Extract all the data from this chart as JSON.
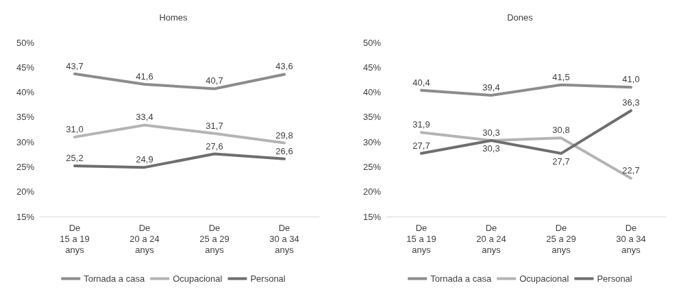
{
  "chart_data": [
    {
      "type": "line",
      "title": "Homes",
      "categories": [
        "De\n15 a 19\nanys",
        "De\n20 a 24\nanys",
        "De\n25 a 29\nanys",
        "De\n30 a 34\nanys"
      ],
      "series": [
        {
          "name": "Tornada a casa",
          "color": "#8c8c8c",
          "values": [
            43.7,
            41.6,
            40.7,
            43.6
          ],
          "value_labels": [
            "43,7",
            "41,6",
            "40,7",
            "43,6"
          ]
        },
        {
          "name": "Ocupacional",
          "color": "#b4b4b4",
          "values": [
            31.0,
            33.4,
            31.7,
            29.8
          ],
          "value_labels": [
            "31,0",
            "33,4",
            "31,7",
            "29,8"
          ]
        },
        {
          "name": "Personal",
          "color": "#6e6e6e",
          "values": [
            25.2,
            24.9,
            27.6,
            26.6
          ],
          "value_labels": [
            "25,2",
            "24,9",
            "27,6",
            "26,6"
          ]
        }
      ],
      "ylim": [
        15,
        50
      ],
      "yticks": [
        {
          "value": 15,
          "label": "15%"
        },
        {
          "value": 20,
          "label": "20%"
        },
        {
          "value": 25,
          "label": "25%"
        },
        {
          "value": 30,
          "label": "30%"
        },
        {
          "value": 35,
          "label": "35%"
        },
        {
          "value": 40,
          "label": "40%"
        },
        {
          "value": 45,
          "label": "45%"
        },
        {
          "value": 50,
          "label": "50%"
        }
      ],
      "grid": false,
      "legend": "bottom",
      "marker": "none",
      "line_style": "solid"
    },
    {
      "type": "line",
      "title": "Dones",
      "categories": [
        "De\n15 a 19\nanys",
        "De\n20 a 24\nanys",
        "De\n25 a 29\nanys",
        "De\n30 a 34\nanys"
      ],
      "series": [
        {
          "name": "Tornada a casa",
          "color": "#8c8c8c",
          "values": [
            40.4,
            39.4,
            41.5,
            41.0
          ],
          "value_labels": [
            "40,4",
            "39,4",
            "41,5",
            "41,0"
          ]
        },
        {
          "name": "Ocupacional",
          "color": "#b4b4b4",
          "values": [
            31.9,
            30.3,
            30.8,
            22.7
          ],
          "value_labels": [
            "31,9",
            "30,3",
            "30,8",
            "22,7"
          ]
        },
        {
          "name": "Personal",
          "color": "#6e6e6e",
          "values": [
            27.7,
            30.3,
            27.7,
            36.3
          ],
          "value_labels": [
            "27,7",
            "30,3",
            "27,7",
            "36,3"
          ]
        }
      ],
      "ylim": [
        15,
        50
      ],
      "yticks": [
        {
          "value": 15,
          "label": "15%"
        },
        {
          "value": 20,
          "label": "20%"
        },
        {
          "value": 25,
          "label": "25%"
        },
        {
          "value": 30,
          "label": "30%"
        },
        {
          "value": 35,
          "label": "35%"
        },
        {
          "value": 40,
          "label": "40%"
        },
        {
          "value": 45,
          "label": "45%"
        },
        {
          "value": 50,
          "label": "50%"
        }
      ],
      "grid": false,
      "legend": "bottom",
      "marker": "none",
      "line_style": "solid"
    }
  ]
}
